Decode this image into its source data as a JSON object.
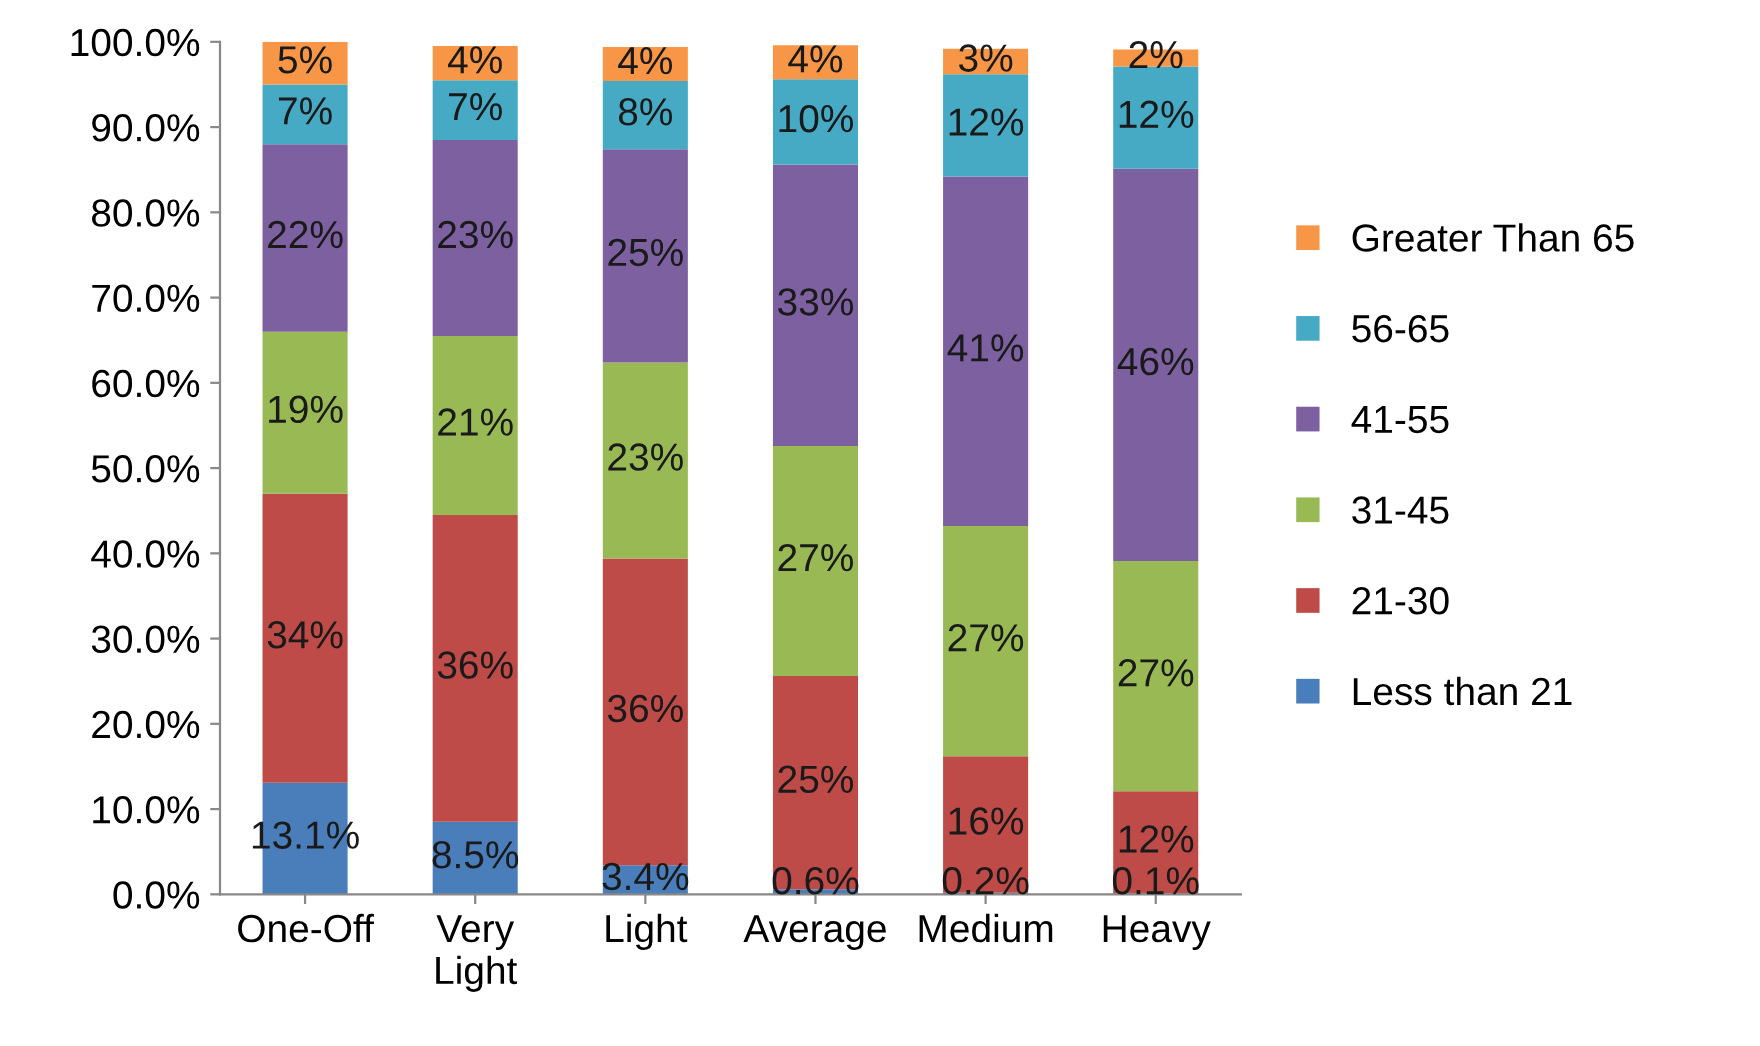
{
  "chart_data": {
    "type": "bar",
    "stacked": true,
    "categories": [
      "One-Off",
      "Very\nLight",
      "Light",
      "Average",
      "Medium",
      "Heavy"
    ],
    "ylim": [
      0,
      100
    ],
    "yticks": [
      {
        "value": 0,
        "label": "0.0%"
      },
      {
        "value": 10,
        "label": "10.0%"
      },
      {
        "value": 20,
        "label": "20.0%"
      },
      {
        "value": 30,
        "label": "30.0%"
      },
      {
        "value": 40,
        "label": "40.0%"
      },
      {
        "value": 50,
        "label": "50.0%"
      },
      {
        "value": 60,
        "label": "60.0%"
      },
      {
        "value": 70,
        "label": "70.0%"
      },
      {
        "value": 80,
        "label": "80.0%"
      },
      {
        "value": 90,
        "label": "90.0%"
      },
      {
        "value": 100,
        "label": "100.0%"
      }
    ],
    "grid": false,
    "legend": "right",
    "series": [
      {
        "name": "Less than 21",
        "color": "#4a7ebb",
        "values": [
          13.1,
          8.5,
          3.4,
          0.6,
          0.2,
          0.1
        ],
        "value_labels": [
          "13.1%",
          "8.5%",
          "3.4%",
          "0.6%",
          "0.2%",
          "0.1%"
        ]
      },
      {
        "name": "21-30",
        "color": "#be4b48",
        "values": [
          33.9,
          36,
          36,
          25,
          16,
          12
        ],
        "value_labels": [
          "34%",
          "36%",
          "36%",
          "25%",
          "16%",
          "12%"
        ]
      },
      {
        "name": "31-45",
        "color": "#98b954",
        "values": [
          19,
          21,
          23,
          27,
          27,
          27
        ],
        "value_labels": [
          "19%",
          "21%",
          "23%",
          "27%",
          "27%",
          "27%"
        ]
      },
      {
        "name": "41-55",
        "color": "#7d60a0",
        "values": [
          22,
          23,
          25,
          33,
          41,
          46
        ],
        "value_labels": [
          "22%",
          "23%",
          "25%",
          "33%",
          "41%",
          "46%"
        ]
      },
      {
        "name": "56-65",
        "color": "#46aac5",
        "values": [
          7,
          7,
          8,
          10,
          12,
          12
        ],
        "value_labels": [
          "7%",
          "7%",
          "8%",
          "10%",
          "12%",
          "12%"
        ]
      },
      {
        "name": "Greater Than 65",
        "color": "#f79646",
        "values": [
          5,
          4,
          4,
          4,
          3,
          2
        ],
        "value_labels": [
          "5%",
          "4%",
          "4%",
          "4%",
          "3%",
          "2%"
        ]
      }
    ]
  }
}
